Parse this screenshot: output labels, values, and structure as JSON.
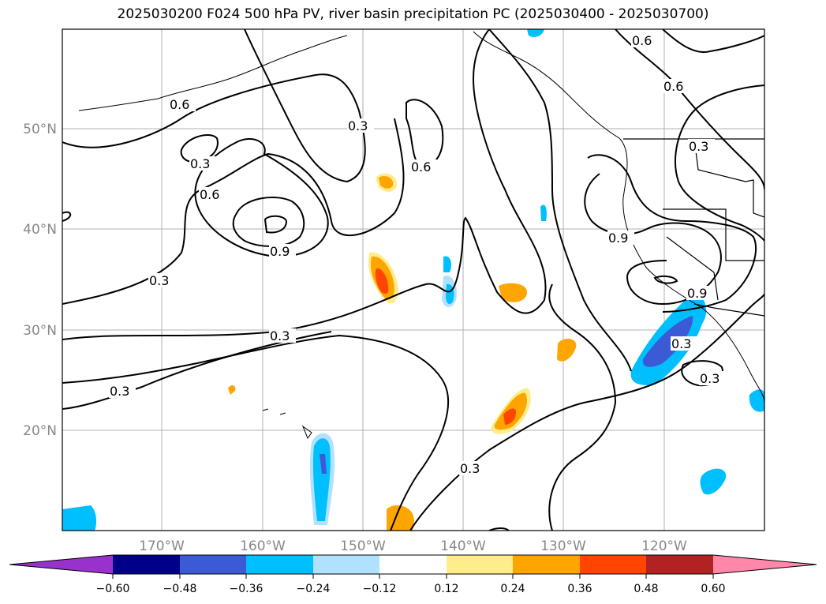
{
  "title": "2025030200 F024 500 hPa PV, river basin precipitation PC (2025030400 - 2025030700)",
  "lat_labels": [
    "50°N",
    "40°N",
    "30°N",
    "20°N"
  ],
  "lon_labels": [
    "170°W",
    "160°W",
    "150°W",
    "140°W",
    "130°W",
    "120°W"
  ],
  "contour_labels": [
    "0.6",
    "0.3",
    "0.6",
    "0.3",
    "0.9",
    "0.3",
    "0.3",
    "0.3",
    "0.6",
    "0.6",
    "0.6",
    "0.3",
    "0.9",
    "0.9",
    "0.3",
    "0.3",
    "0.3"
  ],
  "colorbar": {
    "tick_labels": [
      "−0.60",
      "−0.48",
      "−0.36",
      "−0.24",
      "−0.12",
      "0.12",
      "0.24",
      "0.36",
      "0.48",
      "0.60"
    ],
    "colors": [
      "#9932cc",
      "#00008b",
      "#3b5bd6",
      "#00bfff",
      "#b0e2ff",
      "#ffffff",
      "#ffec8b",
      "#ffa500",
      "#ff4500",
      "#b22222",
      "#ff88aa"
    ]
  }
}
